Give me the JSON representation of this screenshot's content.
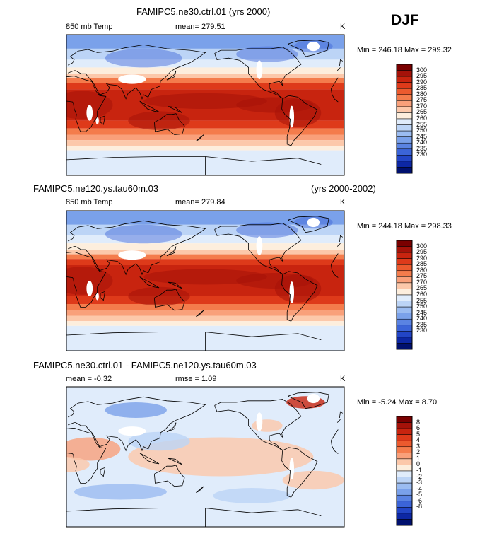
{
  "season": "DJF",
  "panels": [
    {
      "title": "FAMIPC5.ne30.ctrl.01 (yrs 2000)",
      "title_right": "",
      "variable": "850 mb Temp",
      "stat1": "mean= 279.51",
      "stat2": "",
      "units": "K",
      "minmax": "Min = 246.18 Max = 299.32"
    },
    {
      "title": "FAMIPC5.ne120.ys.tau60m.03",
      "title_right": "(yrs 2000-2002)",
      "variable": "850 mb Temp",
      "stat1": "mean= 279.84",
      "stat2": "",
      "units": "K",
      "minmax": "Min = 244.18 Max = 298.33"
    },
    {
      "title": "FAMIPC5.ne30.ctrl.01 - FAMIPC5.ne120.ys.tau60m.03",
      "title_right": "",
      "variable": "",
      "stat1": "mean =   -0.32",
      "stat2": "rmse =    1.09",
      "units": "K",
      "minmax": "Min =   -5.24 Max =    8.70"
    }
  ],
  "chart_data": [
    {
      "type": "heatmap",
      "title": "FAMIPC5.ne30.ctrl.01 (yrs 2000)",
      "variable": "850 mb Temp",
      "units": "K",
      "mean": 279.51,
      "min": 246.18,
      "max": 299.32,
      "colorbar_labels": [
        "300",
        "295",
        "290",
        "285",
        "280",
        "275",
        "270",
        "265",
        "260",
        "255",
        "250",
        "245",
        "240",
        "235",
        "230"
      ],
      "colorbar_colors": [
        "#7a0000",
        "#a51209",
        "#c8240f",
        "#de3a1a",
        "#ec5a2e",
        "#f47c4c",
        "#f9a07a",
        "#fcc8aa",
        "#fdeedd",
        "#e0ecfb",
        "#bcd4f6",
        "#9bbcf1",
        "#7aa1ea",
        "#5a83e2",
        "#3b64d8",
        "#2245c6",
        "#0d27a4",
        "#00106e"
      ]
    },
    {
      "type": "heatmap",
      "title": "FAMIPC5.ne120.ys.tau60m.03 (yrs 2000-2002)",
      "variable": "850 mb Temp",
      "units": "K",
      "mean": 279.84,
      "min": 244.18,
      "max": 298.33,
      "colorbar_labels": [
        "300",
        "295",
        "290",
        "285",
        "280",
        "275",
        "270",
        "265",
        "260",
        "255",
        "250",
        "245",
        "240",
        "235",
        "230"
      ],
      "colorbar_colors": [
        "#7a0000",
        "#a51209",
        "#c8240f",
        "#de3a1a",
        "#ec5a2e",
        "#f47c4c",
        "#f9a07a",
        "#fcc8aa",
        "#fdeedd",
        "#e0ecfb",
        "#bcd4f6",
        "#9bbcf1",
        "#7aa1ea",
        "#5a83e2",
        "#3b64d8",
        "#2245c6",
        "#0d27a4",
        "#00106e"
      ]
    },
    {
      "type": "heatmap",
      "title": "FAMIPC5.ne30.ctrl.01 - FAMIPC5.ne120.ys.tau60m.03",
      "units": "K",
      "mean": -0.32,
      "rmse": 1.09,
      "min": -5.24,
      "max": 8.7,
      "colorbar_labels": [
        "8",
        "6",
        "5",
        "4",
        "3",
        "2",
        "1",
        "0",
        "-1",
        "-2",
        "-3",
        "-4",
        "-5",
        "-6",
        "-8"
      ],
      "colorbar_colors": [
        "#7a0000",
        "#a51209",
        "#c8240f",
        "#de3a1a",
        "#ec5a2e",
        "#f47c4c",
        "#f9a07a",
        "#fcc8aa",
        "#fdeedd",
        "#e0ecfb",
        "#bcd4f6",
        "#9bbcf1",
        "#7aa1ea",
        "#5a83e2",
        "#3b64d8",
        "#2245c6",
        "#0d27a4",
        "#00106e"
      ]
    }
  ]
}
